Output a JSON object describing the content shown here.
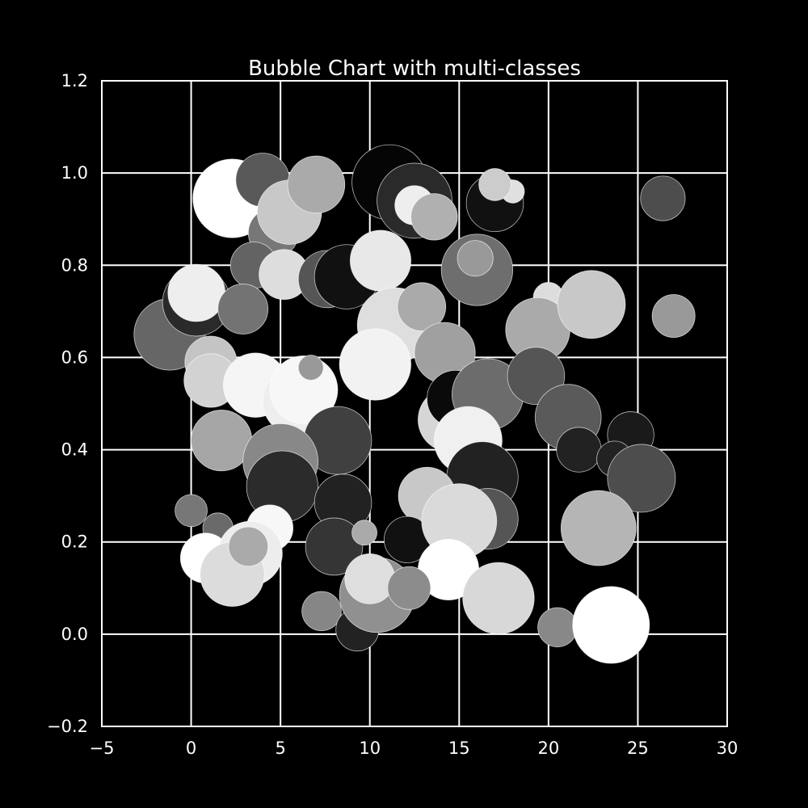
{
  "chart_data": {
    "type": "scatter",
    "variant": "bubble",
    "title": "Bubble Chart with multi-classes",
    "xlabel": "",
    "ylabel": "",
    "xlim": [
      -5,
      30
    ],
    "ylim": [
      -0.2,
      1.2
    ],
    "xticks": [
      -5,
      0,
      5,
      10,
      15,
      20,
      25,
      30
    ],
    "yticks": [
      -0.2,
      0.0,
      0.2,
      0.4,
      0.6,
      0.8,
      1.0,
      1.2
    ],
    "xtick_labels": [
      "−5",
      "0",
      "5",
      "10",
      "15",
      "20",
      "25",
      "30"
    ],
    "ytick_labels": [
      "−0.2",
      "0.0",
      "0.2",
      "0.4",
      "0.6",
      "0.8",
      "1.0",
      "1.2"
    ],
    "grid": true,
    "legend": "none",
    "background": "#000000",
    "foreground": "#ffffff",
    "bubbles": [
      {
        "x": -1.2,
        "y": 0.65,
        "r": 2.0,
        "color": "#666666"
      },
      {
        "x": 0.3,
        "y": 0.72,
        "r": 1.9,
        "color": "#2a2a2a"
      },
      {
        "x": 0.3,
        "y": 0.74,
        "r": 1.6,
        "color": "#eeeeee"
      },
      {
        "x": 2.3,
        "y": 0.945,
        "r": 2.2,
        "color": "#ffffff"
      },
      {
        "x": 4.0,
        "y": 0.985,
        "r": 1.5,
        "color": "#595959"
      },
      {
        "x": 4.6,
        "y": 0.87,
        "r": 1.4,
        "color": "#777777"
      },
      {
        "x": 5.5,
        "y": 0.915,
        "r": 1.8,
        "color": "#c8c8c8"
      },
      {
        "x": 7.0,
        "y": 0.975,
        "r": 1.6,
        "color": "#aaaaaa"
      },
      {
        "x": 3.5,
        "y": 0.8,
        "r": 1.3,
        "color": "#636363"
      },
      {
        "x": 5.2,
        "y": 0.78,
        "r": 1.4,
        "color": "#dddddd"
      },
      {
        "x": 7.6,
        "y": 0.77,
        "r": 1.6,
        "color": "#555555"
      },
      {
        "x": 8.7,
        "y": 0.775,
        "r": 1.8,
        "color": "#111111"
      },
      {
        "x": 2.9,
        "y": 0.705,
        "r": 1.4,
        "color": "#737373"
      },
      {
        "x": 1.1,
        "y": 0.59,
        "r": 1.45,
        "color": "#c4c4c4"
      },
      {
        "x": 1.1,
        "y": 0.55,
        "r": 1.5,
        "color": "#d2d2d2"
      },
      {
        "x": 3.6,
        "y": 0.54,
        "r": 1.8,
        "color": "#f5f5f5"
      },
      {
        "x": 5.9,
        "y": 0.505,
        "r": 1.9,
        "color": "#eeeeee"
      },
      {
        "x": 6.3,
        "y": 0.53,
        "r": 1.9,
        "color": "#f7f7f7"
      },
      {
        "x": 6.7,
        "y": 0.578,
        "r": 0.7,
        "color": "#999999"
      },
      {
        "x": 1.7,
        "y": 0.42,
        "r": 1.7,
        "color": "#a6a6a6"
      },
      {
        "x": 8.2,
        "y": 0.42,
        "r": 1.9,
        "color": "#404040"
      },
      {
        "x": 5.0,
        "y": 0.375,
        "r": 2.1,
        "color": "#888888"
      },
      {
        "x": 5.1,
        "y": 0.32,
        "r": 2.0,
        "color": "#2b2b2b"
      },
      {
        "x": 8.5,
        "y": 0.285,
        "r": 1.6,
        "color": "#222222"
      },
      {
        "x": 0.0,
        "y": 0.268,
        "r": 0.9,
        "color": "#777777"
      },
      {
        "x": 1.5,
        "y": 0.23,
        "r": 0.85,
        "color": "#6a6a6a"
      },
      {
        "x": 4.4,
        "y": 0.23,
        "r": 1.3,
        "color": "#f7f7f7"
      },
      {
        "x": 0.8,
        "y": 0.165,
        "r": 1.4,
        "color": "#ffffff"
      },
      {
        "x": 3.3,
        "y": 0.175,
        "r": 1.8,
        "color": "#ededed"
      },
      {
        "x": 2.3,
        "y": 0.13,
        "r": 1.8,
        "color": "#dcdcdc"
      },
      {
        "x": 3.2,
        "y": 0.19,
        "r": 1.1,
        "color": "#aaaaaa"
      },
      {
        "x": 8.0,
        "y": 0.19,
        "r": 1.6,
        "color": "#353535"
      },
      {
        "x": 9.7,
        "y": 0.22,
        "r": 0.7,
        "color": "#aaaaaa"
      },
      {
        "x": 7.3,
        "y": 0.05,
        "r": 1.1,
        "color": "#868686"
      },
      {
        "x": 9.3,
        "y": 0.01,
        "r": 1.2,
        "color": "#222222"
      },
      {
        "x": 10.4,
        "y": 0.085,
        "r": 2.1,
        "color": "#909090"
      },
      {
        "x": 10.0,
        "y": 0.12,
        "r": 1.4,
        "color": "#dedede"
      },
      {
        "x": 10.6,
        "y": 0.81,
        "r": 1.7,
        "color": "#e8e8e8"
      },
      {
        "x": 11.1,
        "y": 0.98,
        "r": 2.1,
        "color": "#050505"
      },
      {
        "x": 12.5,
        "y": 0.94,
        "r": 2.1,
        "color": "#2a2a2a"
      },
      {
        "x": 12.5,
        "y": 0.93,
        "r": 1.1,
        "color": "#eeeeee"
      },
      {
        "x": 13.6,
        "y": 0.905,
        "r": 1.3,
        "color": "#b0b0b0"
      },
      {
        "x": 11.4,
        "y": 0.67,
        "r": 2.1,
        "color": "#dedede"
      },
      {
        "x": 12.9,
        "y": 0.71,
        "r": 1.35,
        "color": "#aaaaaa"
      },
      {
        "x": 10.3,
        "y": 0.585,
        "r": 2.0,
        "color": "#f2f2f2"
      },
      {
        "x": 14.2,
        "y": 0.61,
        "r": 1.7,
        "color": "#a0a0a0"
      },
      {
        "x": 14.5,
        "y": 0.465,
        "r": 1.8,
        "color": "#d6d6d6"
      },
      {
        "x": 14.8,
        "y": 0.51,
        "r": 1.6,
        "color": "#0a0a0a"
      },
      {
        "x": 16.6,
        "y": 0.52,
        "r": 2.0,
        "color": "#6c6c6c"
      },
      {
        "x": 15.5,
        "y": 0.42,
        "r": 1.9,
        "color": "#f0f0f0"
      },
      {
        "x": 16.3,
        "y": 0.34,
        "r": 2.0,
        "color": "#222222"
      },
      {
        "x": 13.2,
        "y": 0.3,
        "r": 1.6,
        "color": "#c8c8c8"
      },
      {
        "x": 12.1,
        "y": 0.205,
        "r": 1.3,
        "color": "#111111"
      },
      {
        "x": 16.6,
        "y": 0.25,
        "r": 1.7,
        "color": "#555555"
      },
      {
        "x": 15.0,
        "y": 0.245,
        "r": 2.1,
        "color": "#dadada"
      },
      {
        "x": 14.4,
        "y": 0.14,
        "r": 1.7,
        "color": "#ffffff"
      },
      {
        "x": 12.2,
        "y": 0.1,
        "r": 1.2,
        "color": "#8c8c8c"
      },
      {
        "x": 16.0,
        "y": 0.79,
        "r": 2.0,
        "color": "#6e6e6e"
      },
      {
        "x": 15.9,
        "y": 0.815,
        "r": 1.0,
        "color": "#999999"
      },
      {
        "x": 17.0,
        "y": 0.935,
        "r": 1.6,
        "color": "#111111"
      },
      {
        "x": 18.0,
        "y": 0.96,
        "r": 0.65,
        "color": "#e0e0e0"
      },
      {
        "x": 17.0,
        "y": 0.975,
        "r": 0.9,
        "color": "#cccccc"
      },
      {
        "x": 20.0,
        "y": 0.73,
        "r": 0.85,
        "color": "#dddddd"
      },
      {
        "x": 19.4,
        "y": 0.66,
        "r": 1.8,
        "color": "#aaaaaa"
      },
      {
        "x": 19.3,
        "y": 0.56,
        "r": 1.6,
        "color": "#555555"
      },
      {
        "x": 22.4,
        "y": 0.715,
        "r": 1.9,
        "color": "#c8c8c8"
      },
      {
        "x": 21.1,
        "y": 0.47,
        "r": 1.85,
        "color": "#5a5a5a"
      },
      {
        "x": 21.7,
        "y": 0.4,
        "r": 1.25,
        "color": "#222222"
      },
      {
        "x": 24.6,
        "y": 0.432,
        "r": 1.3,
        "color": "#1a1a1a"
      },
      {
        "x": 23.7,
        "y": 0.38,
        "r": 1.0,
        "color": "#222222"
      },
      {
        "x": 25.2,
        "y": 0.338,
        "r": 1.9,
        "color": "#4d4d4d"
      },
      {
        "x": 22.8,
        "y": 0.23,
        "r": 2.1,
        "color": "#b5b5b5"
      },
      {
        "x": 17.2,
        "y": 0.078,
        "r": 2.0,
        "color": "#d8d8d8"
      },
      {
        "x": 20.5,
        "y": 0.015,
        "r": 1.1,
        "color": "#888888"
      },
      {
        "x": 23.5,
        "y": 0.02,
        "r": 2.15,
        "color": "#ffffff"
      },
      {
        "x": 26.4,
        "y": 0.945,
        "r": 1.25,
        "color": "#4d4d4d"
      },
      {
        "x": 27.0,
        "y": 0.69,
        "r": 1.2,
        "color": "#999999"
      }
    ]
  }
}
